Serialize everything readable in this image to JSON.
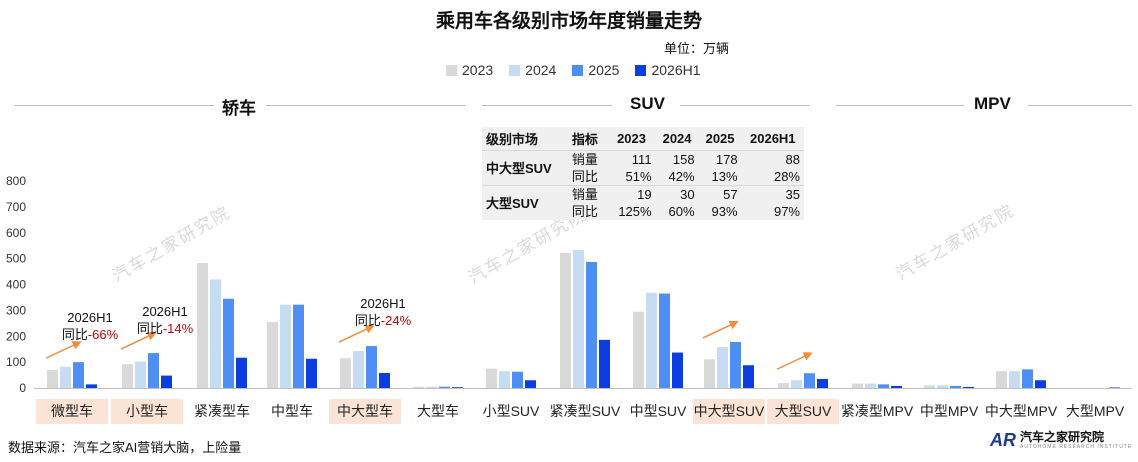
{
  "title": "乘用车各级别市场年度销量走势",
  "unit": "单位：万辆",
  "source": "数据来源：汽车之家AI营销大脑，上险量",
  "logo": {
    "mark": "AR",
    "name": "汽车之家研究院",
    "sub": "AUTOHOME RESEARCH INSTITUTE"
  },
  "watermark": "汽车之家研究院",
  "groups": [
    {
      "name": "轿车",
      "label": "轿车"
    },
    {
      "name": "suv",
      "label": "SUV"
    },
    {
      "name": "mpv",
      "label": "MPV"
    }
  ],
  "colors": {
    "2023": "#d9d9d9",
    "2024": "#c5dcf3",
    "2025": "#4f8ef2",
    "2026H1": "#0b3de0",
    "highlight": "#fbe3d6",
    "arrow": "#f08c3c",
    "decline": "#c00000"
  },
  "table": {
    "headers": [
      "级别市场",
      "指标",
      "2023",
      "2024",
      "2025",
      "2026H1"
    ],
    "rows": [
      {
        "segment": "中大型SUV",
        "metrics": [
          {
            "label": "销量",
            "values": [
              "111",
              "158",
              "178",
              "88"
            ]
          },
          {
            "label": "同比",
            "values": [
              "51%",
              "42%",
              "13%",
              "28%"
            ]
          }
        ]
      },
      {
        "segment": "大型SUV",
        "metrics": [
          {
            "label": "销量",
            "values": [
              "19",
              "30",
              "57",
              "35"
            ]
          },
          {
            "label": "同比",
            "values": [
              "125%",
              "60%",
              "93%",
              "97%"
            ]
          }
        ]
      }
    ]
  },
  "annotations": [
    {
      "category_index": 0,
      "line1": "2026H1",
      "prefix": "同比",
      "value": "-66%"
    },
    {
      "category_index": 1,
      "line1": "2026H1",
      "prefix": "同比",
      "value": "-14%"
    },
    {
      "category_index": 4,
      "line1": "2026H1",
      "prefix": "同比",
      "value": "-24%"
    }
  ],
  "chart_data": {
    "type": "bar",
    "ylim": [
      0,
      800
    ],
    "yticks": [
      0,
      100,
      200,
      300,
      400,
      500,
      600,
      700,
      800
    ],
    "grid": false,
    "legend_position": "top-center",
    "categories": [
      "微型车",
      "小型车",
      "紧凑型车",
      "中型车",
      "中大型车",
      "大型车",
      "小型SUV",
      "紧凑型SUV",
      "中型SUV",
      "中大型SUV",
      "大型SUV",
      "紧凑型MPV",
      "中型MPV",
      "中大型MPV",
      "大型MPV"
    ],
    "category_groups": [
      0,
      0,
      0,
      0,
      0,
      0,
      1,
      1,
      1,
      1,
      1,
      2,
      2,
      2,
      2
    ],
    "highlighted": [
      0,
      1,
      4,
      9,
      10
    ],
    "arrows": [
      0,
      1,
      4,
      9,
      10
    ],
    "series": [
      {
        "name": "2023",
        "values": [
          70,
          92,
          483,
          255,
          115,
          5,
          75,
          522,
          295,
          111,
          19,
          17,
          10,
          65,
          0
        ]
      },
      {
        "name": "2024",
        "values": [
          82,
          102,
          420,
          322,
          143,
          5,
          65,
          533,
          368,
          158,
          30,
          17,
          10,
          65,
          0
        ]
      },
      {
        "name": "2025",
        "values": [
          100,
          135,
          345,
          322,
          162,
          5,
          63,
          487,
          365,
          178,
          57,
          14,
          8,
          72,
          0
        ]
      },
      {
        "name": "2026H1",
        "values": [
          14,
          48,
          117,
          113,
          58,
          3,
          30,
          186,
          137,
          88,
          35,
          8,
          4,
          30,
          2
        ]
      }
    ]
  }
}
